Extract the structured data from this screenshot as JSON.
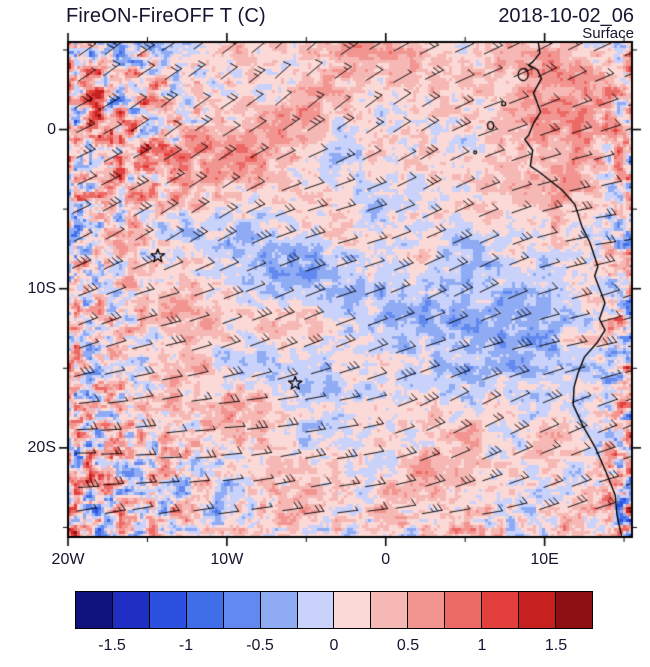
{
  "header": {
    "title": "FireON-FireOFF T (C)",
    "datetime": "2018-10-02_06",
    "level_label": "Surface"
  },
  "chart_data": {
    "type": "heatmap",
    "title": "FireON-FireOFF T (C)",
    "units": "C",
    "time": "2018-10-02_06",
    "level": "Surface",
    "projection": "lat-lon map, southeast Atlantic and west-central African coast",
    "lon_range": [
      -20,
      15.5
    ],
    "lat_range": [
      -25.6,
      5.5
    ],
    "x_ticks": [
      {
        "value": -20,
        "label": "20W"
      },
      {
        "value": -10,
        "label": "10W"
      },
      {
        "value": 0,
        "label": "0"
      },
      {
        "value": 10,
        "label": "10E"
      }
    ],
    "y_ticks": [
      {
        "value": 0,
        "label": "0"
      },
      {
        "value": -10,
        "label": "10S"
      },
      {
        "value": -20,
        "label": "20S"
      }
    ],
    "minor_tick_lons": [
      -15,
      -5,
      5,
      15
    ],
    "minor_tick_lats": [
      5,
      -5,
      -15,
      -25
    ],
    "colorbar": {
      "levels": [
        -1.5,
        -1.25,
        -1,
        -0.75,
        -0.5,
        -0.25,
        0,
        0.25,
        0.5,
        0.75,
        1,
        1.25,
        1.5
      ],
      "colors": [
        "#10127e",
        "#1f2fc4",
        "#2c50e0",
        "#3f6ee8",
        "#6289ef",
        "#8fabf4",
        "#c9d2fa",
        "#fbd9d6",
        "#f6b8b4",
        "#f29591",
        "#ec6a66",
        "#e33f3c",
        "#c6211f",
        "#8e1013"
      ],
      "tick_labels": [
        "-1.5",
        "-1",
        "-0.5",
        "0",
        "0.5",
        "1",
        "1.5"
      ]
    },
    "markers": [
      {
        "type": "star",
        "lon": -14.35,
        "lat": -7.95
      },
      {
        "type": "star",
        "lon": -5.7,
        "lat": -15.95
      }
    ],
    "overlay": "surface wind barbs on regular grid",
    "field_features": [
      {
        "region": "most of open ocean",
        "value_range": "0 to +0.25"
      },
      {
        "region": "diagonal band from (10W,5S) to (5E,12S)",
        "value_range": "-0.25 to -0.75"
      },
      {
        "region": "second band near 17S-20S mid-ocean",
        "value_range": "-0.25 to -0.5"
      },
      {
        "region": "west edge and northwest corner",
        "value_range": "speckled -1.5 to +1.5"
      },
      {
        "region": "near Angola/Namibia coast",
        "value_range": "speckled -1.5 to +1.5"
      },
      {
        "region": "offshore Gabon/Congo around 5E-12E, 0-8S",
        "value_range": "+0.25 to +1"
      },
      {
        "region": "southwest corner patches",
        "value_range": "+0.5 to +1.5"
      }
    ]
  }
}
